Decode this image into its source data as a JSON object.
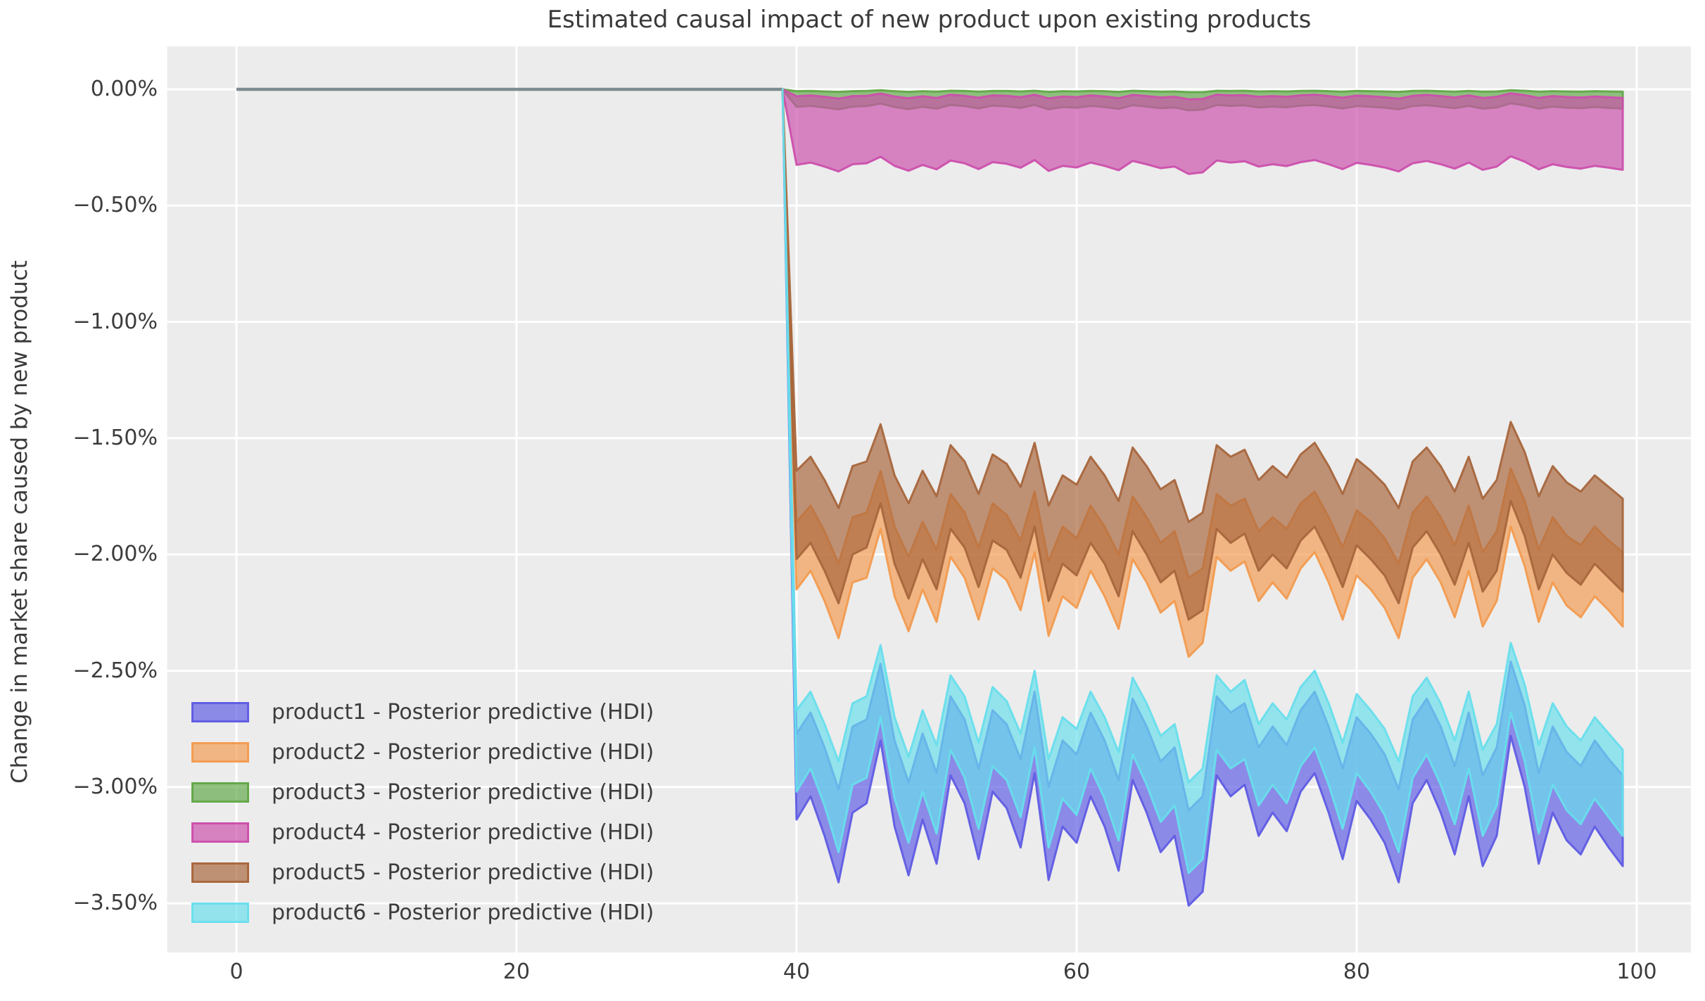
{
  "chart_data": {
    "type": "area",
    "subtype": "hdi-band-timeseries",
    "title": "Estimated causal impact of new product upon existing products",
    "xlabel": "",
    "ylabel": "Change in market share caused by new product",
    "x_ticks": [
      0,
      20,
      40,
      60,
      80,
      100
    ],
    "y_ticks": [
      {
        "value": 0.0,
        "label": "0.00%"
      },
      {
        "value": -0.5,
        "label": "−0.50%"
      },
      {
        "value": -1.0,
        "label": "−1.00%"
      },
      {
        "value": -1.5,
        "label": "−1.50%"
      },
      {
        "value": -2.0,
        "label": "−2.00%"
      },
      {
        "value": -2.5,
        "label": "−2.50%"
      },
      {
        "value": -3.0,
        "label": "−3.00%"
      },
      {
        "value": -3.5,
        "label": "−3.50%"
      }
    ],
    "xlim": [
      -4.95,
      103.95
    ],
    "ylim": [
      -3.71,
      0.19
    ],
    "grid": true,
    "legend_position": "lower left",
    "plot_background": "#ECECEC",
    "grid_color": "#FFFFFF",
    "text_color": "#3C3C3C",
    "treatment_start_x": 40,
    "pre_period": {
      "x_start": 0,
      "x_end": 39,
      "value": 0,
      "line_color": "#7D8C8E"
    },
    "post_period_x": [
      40,
      41,
      42,
      43,
      44,
      45,
      46,
      47,
      48,
      49,
      50,
      51,
      52,
      53,
      54,
      55,
      56,
      57,
      58,
      59,
      60,
      61,
      62,
      63,
      64,
      65,
      66,
      67,
      68,
      69,
      70,
      71,
      72,
      73,
      74,
      75,
      76,
      77,
      78,
      79,
      80,
      81,
      82,
      83,
      84,
      85,
      86,
      87,
      88,
      89,
      90,
      91,
      92,
      93,
      94,
      95,
      96,
      97,
      98,
      99
    ],
    "series": [
      {
        "name": "product1",
        "legend_label": "product1 - Posterior predictive (HDI)",
        "color": "#5F5CE4",
        "hdi_upper": [
          -2.77,
          -2.68,
          -2.83,
          -3.01,
          -2.74,
          -2.71,
          -2.47,
          -2.8,
          -2.98,
          -2.77,
          -2.94,
          -2.61,
          -2.71,
          -2.92,
          -2.67,
          -2.73,
          -2.88,
          -2.59,
          -3.0,
          -2.8,
          -2.86,
          -2.68,
          -2.8,
          -2.97,
          -2.62,
          -2.74,
          -2.89,
          -2.83,
          -3.1,
          -3.04,
          -2.61,
          -2.68,
          -2.64,
          -2.83,
          -2.74,
          -2.82,
          -2.67,
          -2.59,
          -2.74,
          -2.92,
          -2.7,
          -2.77,
          -2.86,
          -3.01,
          -2.71,
          -2.62,
          -2.74,
          -2.91,
          -2.68,
          -2.95,
          -2.83,
          -2.46,
          -2.65,
          -2.94,
          -2.74,
          -2.85,
          -2.91,
          -2.8,
          -2.88,
          -2.95
        ],
        "hdi_lower": [
          -3.14,
          -3.04,
          -3.21,
          -3.41,
          -3.11,
          -3.07,
          -2.8,
          -3.17,
          -3.38,
          -3.14,
          -3.33,
          -2.95,
          -3.07,
          -3.31,
          -3.02,
          -3.09,
          -3.26,
          -2.94,
          -3.4,
          -3.17,
          -3.24,
          -3.04,
          -3.17,
          -3.36,
          -2.97,
          -3.11,
          -3.28,
          -3.21,
          -3.51,
          -3.45,
          -2.95,
          -3.04,
          -2.99,
          -3.21,
          -3.11,
          -3.19,
          -3.02,
          -2.94,
          -3.11,
          -3.31,
          -3.06,
          -3.14,
          -3.24,
          -3.41,
          -3.07,
          -2.97,
          -3.11,
          -3.29,
          -3.04,
          -3.34,
          -3.21,
          -2.78,
          -3.0,
          -3.33,
          -3.11,
          -3.23,
          -3.29,
          -3.17,
          -3.26,
          -3.34
        ]
      },
      {
        "name": "product2",
        "legend_label": "product2 - Posterior predictive (HDI)",
        "color": "#F29B50",
        "hdi_upper": [
          -1.86,
          -1.79,
          -1.9,
          -2.04,
          -1.84,
          -1.82,
          -1.64,
          -1.88,
          -2.01,
          -1.86,
          -1.98,
          -1.74,
          -1.82,
          -1.97,
          -1.78,
          -1.83,
          -1.94,
          -1.73,
          -2.03,
          -1.88,
          -1.93,
          -1.79,
          -1.88,
          -2.0,
          -1.75,
          -1.84,
          -1.95,
          -1.9,
          -2.1,
          -2.06,
          -1.74,
          -1.79,
          -1.76,
          -1.9,
          -1.84,
          -1.89,
          -1.78,
          -1.73,
          -1.84,
          -1.97,
          -1.81,
          -1.86,
          -1.93,
          -2.04,
          -1.82,
          -1.75,
          -1.84,
          -1.96,
          -1.79,
          -1.99,
          -1.9,
          -1.63,
          -1.77,
          -1.98,
          -1.84,
          -1.92,
          -1.96,
          -1.88,
          -1.94,
          -1.99
        ],
        "hdi_lower": [
          -2.15,
          -2.07,
          -2.2,
          -2.36,
          -2.12,
          -2.1,
          -1.89,
          -2.18,
          -2.33,
          -2.15,
          -2.29,
          -2.01,
          -2.1,
          -2.28,
          -2.06,
          -2.11,
          -2.24,
          -1.99,
          -2.35,
          -2.18,
          -2.23,
          -2.07,
          -2.18,
          -2.32,
          -2.02,
          -2.12,
          -2.25,
          -2.2,
          -2.44,
          -2.38,
          -2.01,
          -2.07,
          -2.03,
          -2.2,
          -2.12,
          -2.19,
          -2.06,
          -1.99,
          -2.12,
          -2.28,
          -2.09,
          -2.15,
          -2.23,
          -2.36,
          -2.1,
          -2.02,
          -2.12,
          -2.27,
          -2.07,
          -2.31,
          -2.2,
          -1.88,
          -2.05,
          -2.29,
          -2.12,
          -2.22,
          -2.27,
          -2.18,
          -2.24,
          -2.31
        ]
      },
      {
        "name": "product3",
        "legend_label": "product3 - Posterior predictive (HDI)",
        "color": "#62A848",
        "hdi_upper": [
          -0.008,
          -0.007,
          -0.009,
          -0.011,
          -0.008,
          -0.007,
          -0.004,
          -0.008,
          -0.011,
          -0.008,
          -0.01,
          -0.006,
          -0.007,
          -0.01,
          -0.007,
          -0.007,
          -0.009,
          -0.006,
          -0.011,
          -0.008,
          -0.009,
          -0.007,
          -0.008,
          -0.011,
          -0.006,
          -0.008,
          -0.01,
          -0.009,
          -0.012,
          -0.012,
          -0.006,
          -0.007,
          -0.006,
          -0.009,
          -0.008,
          -0.009,
          -0.007,
          -0.006,
          -0.008,
          -0.01,
          -0.007,
          -0.008,
          -0.009,
          -0.011,
          -0.007,
          -0.006,
          -0.008,
          -0.01,
          -0.007,
          -0.01,
          -0.009,
          -0.004,
          -0.006,
          -0.01,
          -0.008,
          -0.009,
          -0.01,
          -0.008,
          -0.009,
          -0.01
        ],
        "hdi_lower": [
          -0.075,
          -0.071,
          -0.078,
          -0.086,
          -0.074,
          -0.072,
          -0.061,
          -0.076,
          -0.085,
          -0.075,
          -0.083,
          -0.067,
          -0.072,
          -0.082,
          -0.07,
          -0.073,
          -0.08,
          -0.067,
          -0.086,
          -0.076,
          -0.079,
          -0.071,
          -0.076,
          -0.084,
          -0.068,
          -0.074,
          -0.081,
          -0.078,
          -0.09,
          -0.087,
          -0.067,
          -0.071,
          -0.069,
          -0.078,
          -0.074,
          -0.077,
          -0.07,
          -0.067,
          -0.074,
          -0.082,
          -0.072,
          -0.075,
          -0.079,
          -0.086,
          -0.072,
          -0.068,
          -0.074,
          -0.081,
          -0.071,
          -0.083,
          -0.078,
          -0.06,
          -0.069,
          -0.083,
          -0.074,
          -0.079,
          -0.081,
          -0.076,
          -0.08,
          -0.083
        ]
      },
      {
        "name": "product4",
        "legend_label": "product4 - Posterior predictive (HDI)",
        "color": "#CC4FAC",
        "hdi_upper": [
          -0.03,
          -0.026,
          -0.032,
          -0.04,
          -0.029,
          -0.028,
          -0.018,
          -0.031,
          -0.038,
          -0.03,
          -0.037,
          -0.023,
          -0.028,
          -0.036,
          -0.026,
          -0.028,
          -0.034,
          -0.023,
          -0.039,
          -0.031,
          -0.034,
          -0.026,
          -0.031,
          -0.038,
          -0.024,
          -0.029,
          -0.035,
          -0.032,
          -0.043,
          -0.041,
          -0.023,
          -0.026,
          -0.025,
          -0.032,
          -0.029,
          -0.032,
          -0.026,
          -0.023,
          -0.029,
          -0.036,
          -0.027,
          -0.03,
          -0.034,
          -0.04,
          -0.028,
          -0.024,
          -0.029,
          -0.035,
          -0.026,
          -0.037,
          -0.032,
          -0.017,
          -0.025,
          -0.037,
          -0.029,
          -0.033,
          -0.035,
          -0.031,
          -0.034,
          -0.037
        ],
        "hdi_lower": [
          -0.325,
          -0.315,
          -0.332,
          -0.353,
          -0.322,
          -0.318,
          -0.29,
          -0.329,
          -0.35,
          -0.325,
          -0.344,
          -0.306,
          -0.318,
          -0.343,
          -0.313,
          -0.32,
          -0.337,
          -0.304,
          -0.351,
          -0.329,
          -0.336,
          -0.315,
          -0.329,
          -0.348,
          -0.308,
          -0.322,
          -0.339,
          -0.332,
          -0.364,
          -0.357,
          -0.306,
          -0.315,
          -0.309,
          -0.332,
          -0.322,
          -0.33,
          -0.313,
          -0.304,
          -0.322,
          -0.343,
          -0.316,
          -0.325,
          -0.336,
          -0.353,
          -0.318,
          -0.308,
          -0.322,
          -0.341,
          -0.315,
          -0.346,
          -0.332,
          -0.288,
          -0.311,
          -0.344,
          -0.322,
          -0.334,
          -0.341,
          -0.329,
          -0.337,
          -0.346
        ]
      },
      {
        "name": "product5",
        "legend_label": "product5 - Posterior predictive (HDI)",
        "color": "#A8663C",
        "hdi_upper": [
          -1.64,
          -1.58,
          -1.68,
          -1.8,
          -1.62,
          -1.6,
          -1.44,
          -1.66,
          -1.78,
          -1.64,
          -1.75,
          -1.53,
          -1.6,
          -1.74,
          -1.57,
          -1.61,
          -1.71,
          -1.52,
          -1.79,
          -1.66,
          -1.7,
          -1.58,
          -1.66,
          -1.77,
          -1.54,
          -1.62,
          -1.72,
          -1.68,
          -1.86,
          -1.82,
          -1.53,
          -1.58,
          -1.55,
          -1.68,
          -1.62,
          -1.67,
          -1.57,
          -1.52,
          -1.62,
          -1.74,
          -1.59,
          -1.64,
          -1.7,
          -1.8,
          -1.6,
          -1.54,
          -1.62,
          -1.73,
          -1.58,
          -1.76,
          -1.68,
          -1.43,
          -1.56,
          -1.75,
          -1.62,
          -1.69,
          -1.73,
          -1.66,
          -1.71,
          -1.76
        ],
        "hdi_lower": [
          -2.02,
          -1.95,
          -2.07,
          -2.21,
          -2.0,
          -1.97,
          -1.78,
          -2.04,
          -2.19,
          -2.02,
          -2.15,
          -1.89,
          -1.97,
          -2.14,
          -1.94,
          -1.98,
          -2.1,
          -1.88,
          -2.2,
          -2.04,
          -2.09,
          -1.95,
          -2.04,
          -2.18,
          -1.9,
          -2.0,
          -2.12,
          -2.07,
          -2.28,
          -2.24,
          -1.89,
          -1.95,
          -1.91,
          -2.07,
          -2.0,
          -2.06,
          -1.94,
          -1.88,
          -2.0,
          -2.14,
          -1.96,
          -2.02,
          -2.09,
          -2.21,
          -1.97,
          -1.9,
          -2.0,
          -2.13,
          -1.95,
          -2.16,
          -2.07,
          -1.77,
          -1.92,
          -2.15,
          -2.0,
          -2.08,
          -2.13,
          -2.04,
          -2.1,
          -2.16
        ]
      },
      {
        "name": "product6",
        "legend_label": "product6 - Posterior predictive (HDI)",
        "color": "#68DEEC",
        "hdi_upper": [
          -2.67,
          -2.59,
          -2.73,
          -2.89,
          -2.64,
          -2.61,
          -2.39,
          -2.7,
          -2.87,
          -2.67,
          -2.82,
          -2.52,
          -2.61,
          -2.81,
          -2.57,
          -2.63,
          -2.77,
          -2.5,
          -2.88,
          -2.7,
          -2.75,
          -2.59,
          -2.7,
          -2.85,
          -2.53,
          -2.64,
          -2.78,
          -2.73,
          -2.98,
          -2.92,
          -2.52,
          -2.59,
          -2.54,
          -2.73,
          -2.64,
          -2.71,
          -2.57,
          -2.5,
          -2.64,
          -2.81,
          -2.6,
          -2.67,
          -2.75,
          -2.89,
          -2.61,
          -2.53,
          -2.64,
          -2.8,
          -2.59,
          -2.84,
          -2.73,
          -2.38,
          -2.56,
          -2.82,
          -2.64,
          -2.74,
          -2.8,
          -2.7,
          -2.77,
          -2.84
        ],
        "hdi_lower": [
          -3.02,
          -2.92,
          -3.08,
          -3.28,
          -2.99,
          -2.96,
          -2.7,
          -3.05,
          -3.24,
          -3.02,
          -3.2,
          -2.84,
          -2.96,
          -3.18,
          -2.91,
          -2.97,
          -3.13,
          -2.83,
          -3.26,
          -3.05,
          -3.12,
          -2.92,
          -3.05,
          -3.23,
          -2.86,
          -2.99,
          -3.15,
          -3.08,
          -3.37,
          -3.31,
          -2.84,
          -2.92,
          -2.88,
          -3.08,
          -2.99,
          -3.07,
          -2.91,
          -2.83,
          -2.99,
          -3.18,
          -2.94,
          -3.02,
          -3.12,
          -3.28,
          -2.96,
          -2.86,
          -2.99,
          -3.16,
          -2.92,
          -3.21,
          -3.08,
          -2.68,
          -2.89,
          -3.2,
          -2.99,
          -3.1,
          -3.16,
          -3.05,
          -3.13,
          -3.21
        ]
      }
    ]
  }
}
